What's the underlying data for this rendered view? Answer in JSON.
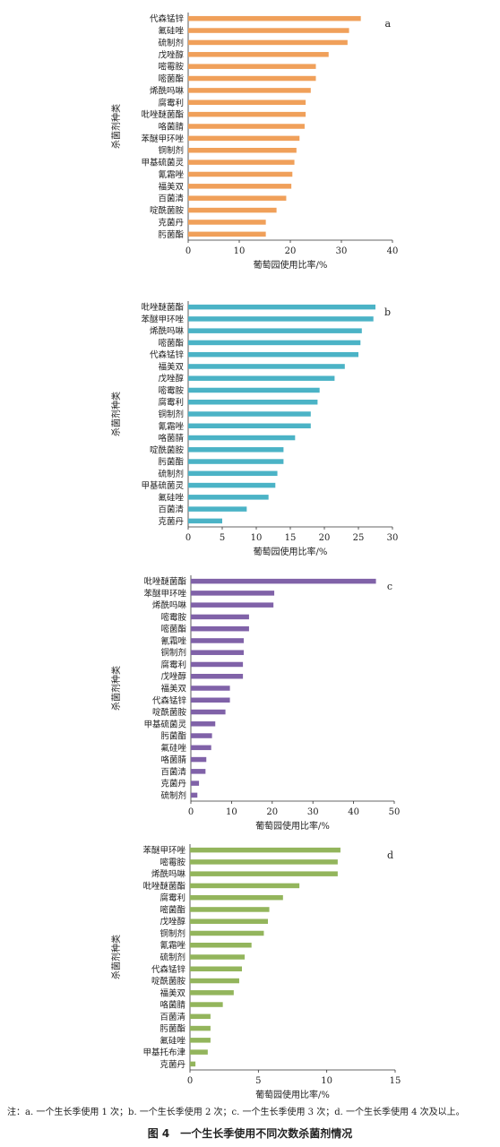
{
  "figure_note": "注：a. 一个生长季使用 1 次；b. 一个生长季使用 2 次；c. 一个生长季使用 3 次；d. 一个生长季使用 4 次及以上。",
  "figure_caption": "图 4　一个生长季使用不同次数杀菌剂情况",
  "chart_data": [
    {
      "type": "bar",
      "orientation": "horizontal",
      "panel_label": "a",
      "color": "#F0A05A",
      "xlabel": "葡萄园使用比率/%",
      "ylabel": "杀菌剂种类",
      "xlim": [
        0,
        40
      ],
      "xticks": [
        0,
        10,
        20,
        30,
        40
      ],
      "categories": [
        "代森锰锌",
        "氟硅唑",
        "硫制剂",
        "戊唑醇",
        "嘧霉胺",
        "嘧菌酯",
        "烯酰吗啉",
        "腐霉利",
        "吡唑醚菌酯",
        "咯菌腈",
        "苯醚甲环唑",
        "铜制剂",
        "甲基硫菌灵",
        "氰霜唑",
        "福美双",
        "百菌清",
        "啶酰菌胺",
        "克菌丹",
        "肟菌酯"
      ],
      "values": [
        33.8,
        31.5,
        31.2,
        27.5,
        25.0,
        25.0,
        24.0,
        23.0,
        23.0,
        22.8,
        21.8,
        21.2,
        20.8,
        20.4,
        20.2,
        19.2,
        17.3,
        15.2,
        15.2
      ]
    },
    {
      "type": "bar",
      "orientation": "horizontal",
      "panel_label": "b",
      "color": "#4BB3C6",
      "xlabel": "葡萄园使用比率/%",
      "ylabel": "杀菌剂种类",
      "xlim": [
        0,
        30
      ],
      "xticks": [
        0,
        5,
        10,
        15,
        20,
        25,
        30
      ],
      "categories": [
        "吡唑醚菌酯",
        "苯醚甲环唑",
        "烯酰吗啉",
        "嘧菌酯",
        "代森锰锌",
        "福美双",
        "戊唑醇",
        "嘧霉胺",
        "腐霉利",
        "铜制剂",
        "氰霜唑",
        "咯菌腈",
        "啶酰菌胺",
        "肟菌酯",
        "硫制剂",
        "甲基硫菌灵",
        "氟硅唑",
        "百菌清",
        "克菌丹"
      ],
      "values": [
        27.5,
        27.2,
        25.5,
        25.3,
        25.0,
        23.0,
        21.5,
        19.3,
        19.0,
        18.0,
        18.0,
        15.7,
        14.0,
        14.0,
        13.1,
        12.8,
        11.8,
        8.6,
        5.0
      ]
    },
    {
      "type": "bar",
      "orientation": "horizontal",
      "panel_label": "c",
      "color": "#8062A8",
      "xlabel": "葡萄园使用比率/%",
      "ylabel": "杀菌剂种类",
      "xlim": [
        0,
        50
      ],
      "xticks": [
        0,
        10,
        20,
        30,
        40,
        50
      ],
      "categories": [
        "吡唑醚菌酯",
        "苯醚甲环唑",
        "烯酰吗啉",
        "嘧霉胺",
        "嘧菌酯",
        "氰霜唑",
        "铜制剂",
        "腐霉利",
        "戊唑醇",
        "福美双",
        "代森锰锌",
        "啶酰菌胺",
        "甲基硫菌灵",
        "肟菌酯",
        "氟硅唑",
        "咯菌腈",
        "百菌清",
        "克菌丹",
        "硫制剂"
      ],
      "values": [
        45.5,
        20.5,
        20.3,
        14.3,
        14.3,
        13.0,
        13.0,
        12.8,
        12.8,
        9.6,
        9.6,
        8.5,
        6.0,
        5.2,
        5.0,
        3.8,
        3.6,
        2.0,
        1.6
      ]
    },
    {
      "type": "bar",
      "orientation": "horizontal",
      "panel_label": "d",
      "color": "#93B55C",
      "xlabel": "葡萄园使用比率/%",
      "ylabel": "杀菌剂种类",
      "xlim": [
        0,
        15
      ],
      "xticks": [
        0,
        5,
        10,
        15
      ],
      "categories": [
        "苯醚甲环唑",
        "嘧霉胺",
        "烯酰吗啉",
        "吡唑醚菌酯",
        "腐霉利",
        "嘧菌酯",
        "戊唑醇",
        "铜制剂",
        "氰霜唑",
        "硫制剂",
        "代森锰锌",
        "啶酰菌胺",
        "福美双",
        "咯菌腈",
        "百菌清",
        "肟菌酯",
        "氟硅唑",
        "甲基托布津",
        "克菌丹"
      ],
      "values": [
        11.0,
        10.8,
        10.8,
        8.0,
        6.8,
        5.8,
        5.7,
        5.4,
        4.5,
        4.0,
        3.8,
        3.6,
        3.2,
        2.4,
        1.5,
        1.5,
        1.5,
        1.3,
        0.4
      ]
    }
  ]
}
